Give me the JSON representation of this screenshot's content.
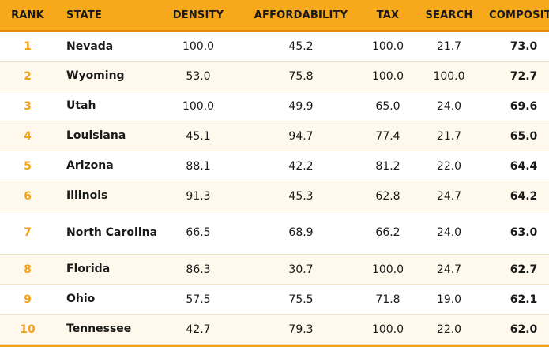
{
  "columns": {
    "rank": "RANK",
    "state": "STATE",
    "density": "DENSITY",
    "affordability": "AFFORDABILITY",
    "tax": "TAX",
    "search": "SEARCH",
    "composite": "COMPOSITE"
  },
  "rows": [
    {
      "rank": "1",
      "state": "Nevada",
      "density": "100.0",
      "affordability": "45.2",
      "tax": "100.0",
      "search": "21.7",
      "composite": "73.0"
    },
    {
      "rank": "2",
      "state": "Wyoming",
      "density": "53.0",
      "affordability": "75.8",
      "tax": "100.0",
      "search": "100.0",
      "composite": "72.7"
    },
    {
      "rank": "3",
      "state": "Utah",
      "density": "100.0",
      "affordability": "49.9",
      "tax": "65.0",
      "search": "24.0",
      "composite": "69.6"
    },
    {
      "rank": "4",
      "state": "Louisiana",
      "density": "45.1",
      "affordability": "94.7",
      "tax": "77.4",
      "search": "21.7",
      "composite": "65.0"
    },
    {
      "rank": "5",
      "state": "Arizona",
      "density": "88.1",
      "affordability": "42.2",
      "tax": "81.2",
      "search": "22.0",
      "composite": "64.4"
    },
    {
      "rank": "6",
      "state": "Illinois",
      "density": "91.3",
      "affordability": "45.3",
      "tax": "62.8",
      "search": "24.7",
      "composite": "64.2"
    },
    {
      "rank": "7",
      "state": "North Carolina",
      "density": "66.5",
      "affordability": "68.9",
      "tax": "66.2",
      "search": "24.0",
      "composite": "63.0"
    },
    {
      "rank": "8",
      "state": "Florida",
      "density": "86.3",
      "affordability": "30.7",
      "tax": "100.0",
      "search": "24.7",
      "composite": "62.7"
    },
    {
      "rank": "9",
      "state": "Ohio",
      "density": "57.5",
      "affordability": "75.5",
      "tax": "71.8",
      "search": "19.0",
      "composite": "62.1"
    },
    {
      "rank": "10",
      "state": "Tennessee",
      "density": "42.7",
      "affordability": "79.3",
      "tax": "100.0",
      "search": "22.0",
      "composite": "62.0"
    }
  ],
  "colors": {
    "header_bg": "#f7a81b",
    "rank_text": "#f2a11c",
    "stripe_bg": "#fef9ec"
  }
}
